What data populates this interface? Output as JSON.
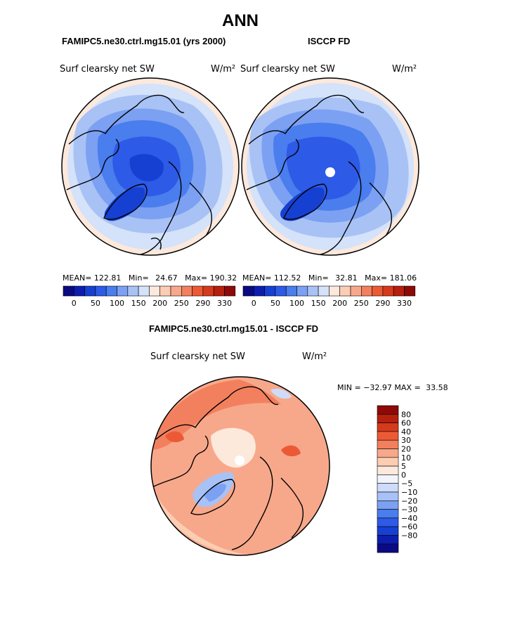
{
  "title": "ANN",
  "panel_left": {
    "header": "FAMIPC5.ne30.ctrl.mg15.01 (yrs 2000)",
    "field": "Surf clearsky net SW",
    "units": "W/m²",
    "stats": {
      "mean_label": "MEAN=",
      "mean": "122.81",
      "min_label": "Min=",
      "min": "24.67",
      "max_label": "Max=",
      "max": "190.32"
    }
  },
  "panel_right": {
    "header": "ISCCP FD",
    "field": "Surf clearsky net SW",
    "units": "W/m²",
    "stats": {
      "mean_label": "MEAN=",
      "mean": "112.52",
      "min_label": "Min=",
      "min": "32.81",
      "max_label": "Max=",
      "max": "181.06"
    }
  },
  "colorbar_top": {
    "colors": [
      "#0a0a82",
      "#0d1eae",
      "#1640d2",
      "#2d5ae6",
      "#4a7ded",
      "#7ca0f2",
      "#a8c2f5",
      "#d4e2fa",
      "#fde8dc",
      "#fbcdb3",
      "#f7a88a",
      "#f2805e",
      "#ec5a35",
      "#d63a1c",
      "#b5200f",
      "#8e0a08"
    ],
    "labels": [
      "0",
      "50",
      "100",
      "150",
      "200",
      "250",
      "290",
      "330"
    ]
  },
  "diff_panel": {
    "header": "FAMIPC5.ne30.ctrl.mg15.01 - ISCCP FD",
    "field": "Surf clearsky net SW",
    "units": "W/m²",
    "min_label": "MIN =",
    "min": "−32.97",
    "max_label": "MAX =",
    "max": "33.58"
  },
  "colorbar_diff": {
    "colors": [
      "#8e0a08",
      "#b5200f",
      "#d63a1c",
      "#ec5a35",
      "#f2805e",
      "#f7a88a",
      "#fbcdb3",
      "#fde8dc",
      "#f2f4fc",
      "#cddcfa",
      "#a8c2f5",
      "#7ca0f2",
      "#4a7ded",
      "#2d5ae6",
      "#1640d2",
      "#0d1eae",
      "#0a0a82"
    ],
    "labels": [
      "80",
      "60",
      "40",
      "30",
      "20",
      "10",
      "5",
      "0",
      "−5",
      "−10",
      "−20",
      "−30",
      "−40",
      "−60",
      "−80"
    ]
  }
}
